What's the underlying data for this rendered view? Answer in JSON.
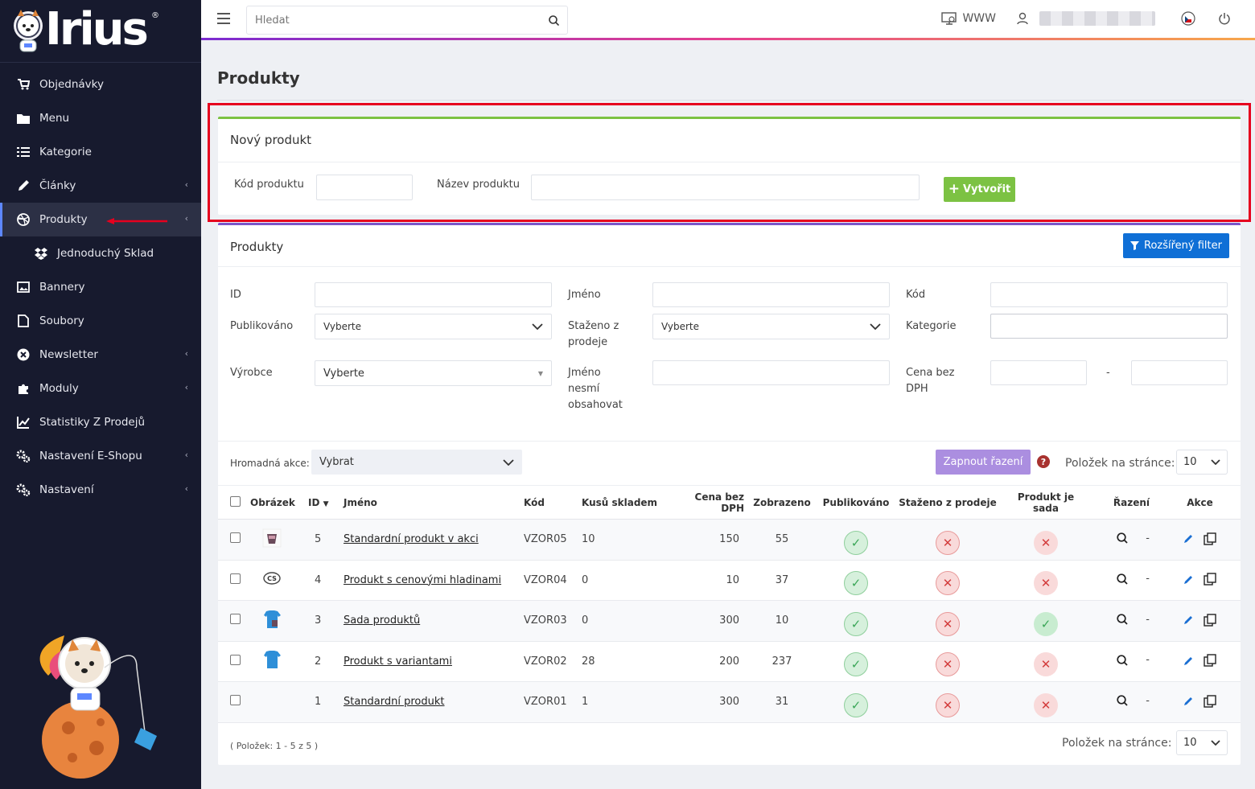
{
  "brand": {
    "name": "Irius",
    "reg": "®"
  },
  "sidebar": {
    "items": [
      {
        "label": "Objednávky",
        "icon": "cart-icon",
        "chevron": false,
        "active": false,
        "sub": false
      },
      {
        "label": "Menu",
        "icon": "folder-icon",
        "chevron": false,
        "active": false,
        "sub": false
      },
      {
        "label": "Kategorie",
        "icon": "list-icon",
        "chevron": false,
        "active": false,
        "sub": false
      },
      {
        "label": "Články",
        "icon": "pencil-icon",
        "chevron": true,
        "active": false,
        "sub": false
      },
      {
        "label": "Produkty",
        "icon": "dribbble-icon",
        "chevron": true,
        "active": true,
        "sub": false
      },
      {
        "label": "Jednoduchý Sklad",
        "icon": "dropbox-icon",
        "chevron": false,
        "active": false,
        "sub": true
      },
      {
        "label": "Bannery",
        "icon": "image-icon",
        "chevron": false,
        "active": false,
        "sub": false
      },
      {
        "label": "Soubory",
        "icon": "file-icon",
        "chevron": false,
        "active": false,
        "sub": false
      },
      {
        "label": "Newsletter",
        "icon": "x-circle-icon",
        "chevron": true,
        "active": false,
        "sub": false
      },
      {
        "label": "Moduly",
        "icon": "puzzle-icon",
        "chevron": true,
        "active": false,
        "sub": false
      },
      {
        "label": "Statistiky Z Prodejů",
        "icon": "line-chart-icon",
        "chevron": false,
        "active": false,
        "sub": false
      },
      {
        "label": "Nastavení E-Shopu",
        "icon": "gears-icon",
        "chevron": true,
        "active": false,
        "sub": false
      },
      {
        "label": "Nastavení",
        "icon": "gears-icon",
        "chevron": true,
        "active": false,
        "sub": false
      }
    ]
  },
  "topbar": {
    "search_placeholder": "Hledat",
    "www_label": "WWW"
  },
  "page": {
    "title": "Produkty"
  },
  "new_product": {
    "title": "Nový produkt",
    "code_label": "Kód produktu",
    "name_label": "Název produktu",
    "create_label": "Vytvořit"
  },
  "list": {
    "title": "Produkty",
    "filter_button": "Rozšířený filter",
    "filters": {
      "id": "ID",
      "name": "Jméno",
      "code": "Kód",
      "published": "Publikováno",
      "published_value": "Vyberte",
      "withdrawn": "Staženo z prodeje",
      "withdrawn_value": "Vyberte",
      "category": "Kategorie",
      "manufacturer": "Výrobce",
      "manufacturer_value": "Vyberte",
      "name_excludes": "Jméno nesmí obsahovat",
      "price": "Cena bez DPH",
      "range_sep": "-"
    },
    "bulk_label": "Hromadná akce:",
    "bulk_value": "Vybrat",
    "sort_button": "Zapnout řazení",
    "help": "?",
    "per_page_label": "Položek na stránce:",
    "per_page_value": "10",
    "columns": [
      "Obrázek",
      "ID",
      "Jméno",
      "Kód",
      "Kusů skladem",
      "Cena bez DPH",
      "Zobrazeno",
      "Publikováno",
      "Staženo z prodeje",
      "Produkt je sada",
      "Řazení",
      "Akce"
    ],
    "rows": [
      {
        "img": "cup",
        "id": "5",
        "name": "Standardní produkt v akci",
        "code": "VZOR05",
        "stock": "10",
        "price": "150",
        "views": "55",
        "published": true,
        "withdrawn": false,
        "is_set": false,
        "sort": "-"
      },
      {
        "img": "cs",
        "id": "4",
        "name": "Produkt s cenovými hladinami",
        "code": "VZOR04",
        "stock": "0",
        "price": "10",
        "views": "37",
        "published": true,
        "withdrawn": false,
        "is_set": false,
        "sort": "-"
      },
      {
        "img": "shirt-cup",
        "id": "3",
        "name": "Sada produktů",
        "code": "VZOR03",
        "stock": "0",
        "price": "300",
        "views": "10",
        "published": true,
        "withdrawn": false,
        "is_set": true,
        "sort": "-"
      },
      {
        "img": "shirt",
        "id": "2",
        "name": "Produkt s variantami",
        "code": "VZOR02",
        "stock": "28",
        "price": "200",
        "views": "237",
        "published": true,
        "withdrawn": false,
        "is_set": false,
        "sort": "-"
      },
      {
        "img": "",
        "id": "1",
        "name": "Standardní produkt",
        "code": "VZOR01",
        "stock": "1",
        "price": "300",
        "views": "31",
        "published": true,
        "withdrawn": false,
        "is_set": false,
        "sort": "-"
      }
    ],
    "footer": "( Položek: 1 - 5 z 5 )",
    "per_page_label_bottom": "Položek na stránce:",
    "per_page_value_bottom": "10"
  },
  "colors": {
    "sidebar_bg": "#171a2e",
    "accent_green": "#7cc243",
    "accent_blue": "#0f6fd6",
    "accent_purple": "#ab8ee0",
    "highlight_red": "#e6001e"
  }
}
